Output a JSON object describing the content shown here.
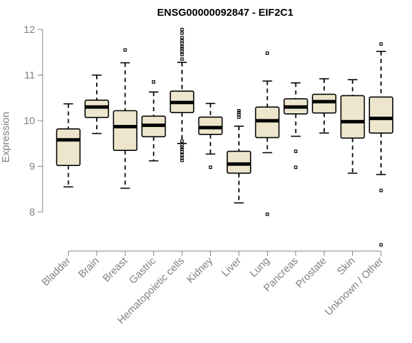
{
  "chart_data": {
    "type": "boxplot",
    "title": "ENSG00000092847 - EIF2C1",
    "xlabel": "",
    "ylabel": "Expression",
    "ylim": [
      7.0,
      12.05
    ],
    "yticks": [
      8,
      9,
      10,
      11,
      12
    ],
    "categories": [
      "Bladder",
      "Brain",
      "Breast",
      "Gastric",
      "Hematopoietic cells",
      "Kidney",
      "Liver",
      "Lung",
      "Pancreas",
      "Prostate",
      "Skin",
      "Unknown / Other"
    ],
    "box_fill": "#ede6cc",
    "series": [
      {
        "name": "Bladder",
        "whisker_low": 8.55,
        "q1": 9.02,
        "median": 9.58,
        "q3": 9.82,
        "whisker_high": 10.37,
        "outliers": []
      },
      {
        "name": "Brain",
        "whisker_low": 9.72,
        "q1": 10.07,
        "median": 10.3,
        "q3": 10.45,
        "whisker_high": 11.0,
        "outliers": []
      },
      {
        "name": "Breast",
        "whisker_low": 8.52,
        "q1": 9.35,
        "median": 9.87,
        "q3": 10.22,
        "whisker_high": 11.27,
        "outliers": [
          11.55
        ]
      },
      {
        "name": "Gastric",
        "whisker_low": 9.12,
        "q1": 9.65,
        "median": 9.9,
        "q3": 10.1,
        "whisker_high": 10.63,
        "outliers": [
          10.85
        ]
      },
      {
        "name": "Hematopoietic cells",
        "whisker_low": 9.5,
        "q1": 10.18,
        "median": 10.4,
        "q3": 10.65,
        "whisker_high": 11.28,
        "outliers": [
          9.13,
          9.18,
          9.25,
          9.32,
          9.38,
          9.42,
          9.47,
          9.55,
          11.35,
          11.45,
          11.52,
          11.58,
          11.62,
          11.7,
          11.75,
          11.82,
          11.92,
          12.0
        ]
      },
      {
        "name": "Kidney",
        "whisker_low": 9.27,
        "q1": 9.7,
        "median": 9.85,
        "q3": 10.08,
        "whisker_high": 10.38,
        "outliers": [
          8.98
        ]
      },
      {
        "name": "Liver",
        "whisker_low": 8.2,
        "q1": 8.85,
        "median": 9.05,
        "q3": 9.33,
        "whisker_high": 9.88,
        "outliers": [
          10.08,
          10.13,
          10.18,
          10.22
        ]
      },
      {
        "name": "Lung",
        "whisker_low": 9.3,
        "q1": 9.63,
        "median": 10.0,
        "q3": 10.3,
        "whisker_high": 10.87,
        "outliers": [
          7.95,
          11.48
        ]
      },
      {
        "name": "Pancreas",
        "whisker_low": 9.66,
        "q1": 10.15,
        "median": 10.3,
        "q3": 10.48,
        "whisker_high": 10.83,
        "outliers": [
          8.98,
          9.33
        ]
      },
      {
        "name": "Prostate",
        "whisker_low": 9.73,
        "q1": 10.17,
        "median": 10.42,
        "q3": 10.58,
        "whisker_high": 10.92,
        "outliers": []
      },
      {
        "name": "Skin",
        "whisker_low": 8.85,
        "q1": 9.62,
        "median": 9.98,
        "q3": 10.55,
        "whisker_high": 10.9,
        "outliers": []
      },
      {
        "name": "Unknown / Other",
        "whisker_low": 8.82,
        "q1": 9.73,
        "median": 10.05,
        "q3": 10.52,
        "whisker_high": 11.52,
        "outliers": [
          7.28,
          8.47,
          11.68
        ]
      }
    ]
  }
}
